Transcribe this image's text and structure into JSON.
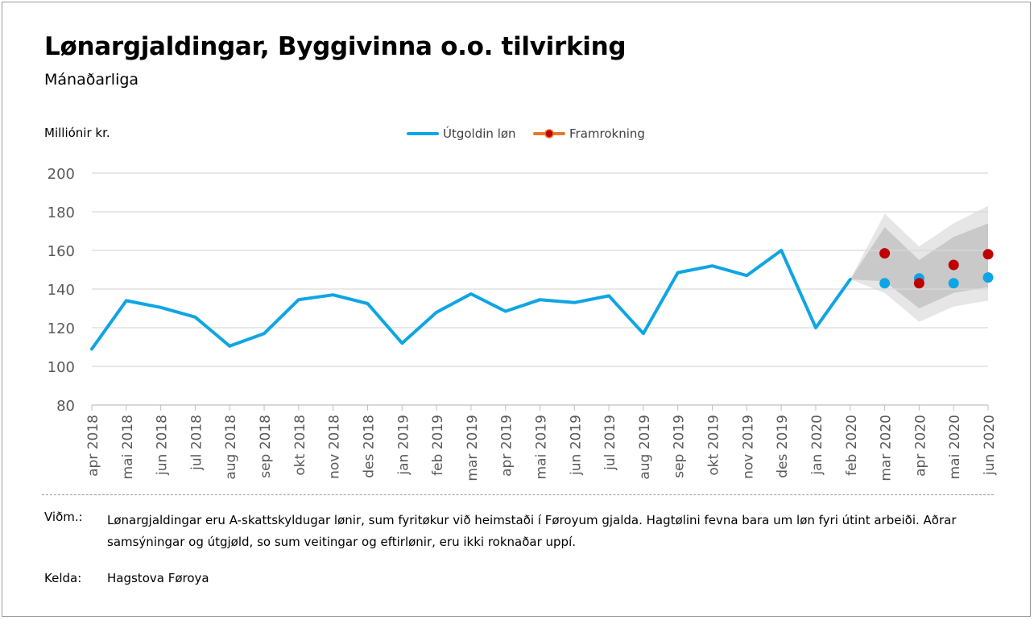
{
  "header": {
    "title": "Lønargjaldingar, Byggivinna o.o. tilvirking",
    "subtitle": "Mánaðarliga",
    "unit": "Milliónir kr."
  },
  "footer": {
    "note_label": "Viðm.:",
    "note_text": "Lønargjaldingar eru A-skattskyldugar lønir, sum fyritøkur við heimstaði í Føroyum gjalda. Hagtølini fevna bara um løn fyri útint arbeiði. Aðrar samsýningar og útgjøld, so sum veitingar og eftirlønir, eru ikki roknaðar uppí.",
    "source_label": "Kelda:",
    "source_text": "Hagstova Føroya"
  },
  "colors": {
    "actual": "#0ea5e4",
    "forecast_point": "#c00000",
    "forecast_legend_line": "#e8792a",
    "band_outer": "#e6e6e6",
    "band_inner": "#c9c9c9",
    "grid": "#d9d9d9",
    "axis_text": "#595959"
  },
  "chart_data": {
    "type": "line",
    "ylim": [
      80,
      200
    ],
    "yticks": [
      80,
      100,
      120,
      140,
      160,
      180,
      200
    ],
    "grid": true,
    "legend_position": "top",
    "categories": [
      "apr 2018",
      "mai 2018",
      "jun 2018",
      "jul 2018",
      "aug 2018",
      "sep 2018",
      "okt 2018",
      "nov 2018",
      "des 2018",
      "jan 2019",
      "feb 2019",
      "mar 2019",
      "apr 2019",
      "mai 2019",
      "jun 2019",
      "jul 2019",
      "aug 2019",
      "sep 2019",
      "okt 2019",
      "nov 2019",
      "des 2019",
      "jan 2020",
      "feb 2020",
      "mar 2020",
      "apr 2020",
      "mai 2020",
      "jun 2020"
    ],
    "series": [
      {
        "name": "Útgoldin løn",
        "values": [
          109,
          134,
          130.5,
          125.5,
          110.5,
          117,
          134.5,
          137,
          132.5,
          112,
          128,
          137.5,
          128.5,
          134.5,
          133,
          136.5,
          117,
          148.5,
          152,
          147,
          160,
          120,
          145,
          143,
          145.5,
          143,
          146
        ]
      },
      {
        "name": "Framrokning",
        "values": [
          null,
          null,
          null,
          null,
          null,
          null,
          null,
          null,
          null,
          null,
          null,
          null,
          null,
          null,
          null,
          null,
          null,
          null,
          null,
          null,
          null,
          null,
          null,
          158.5,
          143,
          152.5,
          158
        ]
      }
    ],
    "forecast_band": {
      "outer_upper": [
        145,
        179,
        162,
        174,
        183
      ],
      "outer_lower": [
        145,
        138,
        123,
        131,
        134
      ],
      "inner_upper": [
        145,
        172,
        155,
        167,
        174
      ],
      "inner_lower": [
        145,
        144,
        130,
        138,
        141
      ],
      "start_category_index": 22
    }
  }
}
